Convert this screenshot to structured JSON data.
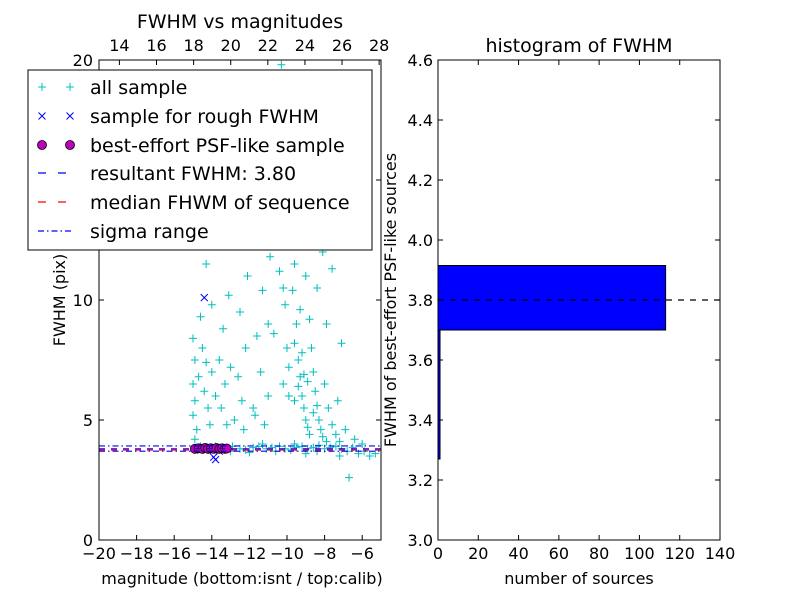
{
  "chart_data": [
    {
      "type": "scatter",
      "title": "FWHM vs magnitudes",
      "xlabel": "magnitude (bottom:isnt / top:calib)",
      "ylabel": "FWHM (pix)",
      "xlim": [
        -20,
        -5
      ],
      "ylim": [
        0,
        20
      ],
      "x_ticks": [
        -20,
        -18,
        -16,
        -14,
        -12,
        -10,
        -8,
        -6
      ],
      "x_tick_labels": [
        "−20",
        "−18",
        "−16",
        "−14",
        "−12",
        "−10",
        "−8",
        "−6"
      ],
      "y_ticks": [
        0,
        5,
        10,
        15,
        20
      ],
      "y_tick_labels": [
        "0",
        "5",
        "10",
        "15",
        "20"
      ],
      "top_axis": {
        "xlim": [
          12.9,
          28.1
        ],
        "ticks": [
          14,
          16,
          18,
          20,
          22,
          24,
          26,
          28
        ],
        "tick_labels": [
          "14",
          "16",
          "18",
          "20",
          "22",
          "24",
          "26",
          "28"
        ]
      },
      "legend_position": "upper-left",
      "legend": [
        {
          "label": "all sample",
          "marker": "plus",
          "color": "#00bfbf"
        },
        {
          "label": "sample for rough FWHM",
          "marker": "x",
          "color": "#0000ff"
        },
        {
          "label": "best-effort PSF-like sample",
          "marker": "circle",
          "color": "#bf00bf"
        },
        {
          "label": "resultant FWHM: 3.80",
          "marker": "dashed-line",
          "color": "#0000ff"
        },
        {
          "label": "median FHWM of sequence",
          "marker": "dashed-line",
          "color": "#ff0000"
        },
        {
          "label": "sigma range",
          "marker": "dashdot-line",
          "color": "#0000ff"
        }
      ],
      "series": [
        {
          "values": [
            [
              -14.8,
              3.85
            ],
            [
              -14.6,
              3.9
            ],
            [
              -14.3,
              3.8
            ],
            [
              -14.0,
              3.85
            ],
            [
              -13.8,
              3.9
            ],
            [
              -13.5,
              3.8
            ],
            [
              -13.2,
              3.85
            ],
            [
              -12.9,
              3.9
            ],
            [
              -12.5,
              3.8
            ],
            [
              -12.2,
              3.75
            ],
            [
              -11.8,
              3.85
            ],
            [
              -11.5,
              3.9
            ],
            [
              -11.1,
              3.8
            ],
            [
              -10.8,
              3.85
            ],
            [
              -10.4,
              3.9
            ],
            [
              -10.1,
              3.8
            ],
            [
              -9.8,
              3.75
            ],
            [
              -9.5,
              3.85
            ],
            [
              -9.2,
              3.9
            ],
            [
              -8.9,
              3.8
            ],
            [
              -8.6,
              3.85
            ],
            [
              -8.3,
              3.95
            ],
            [
              -8.0,
              3.8
            ],
            [
              -7.7,
              3.85
            ],
            [
              -7.4,
              3.9
            ],
            [
              -7.1,
              3.8
            ],
            [
              -6.8,
              3.7
            ],
            [
              -6.5,
              3.85
            ],
            [
              -6.2,
              3.6
            ],
            [
              -5.9,
              3.7
            ],
            [
              -5.6,
              3.5
            ],
            [
              -5.3,
              3.6
            ],
            [
              -6.7,
              2.6
            ],
            [
              -9.0,
              3.6
            ],
            [
              -8.4,
              3.7
            ],
            [
              -10.6,
              3.7
            ],
            [
              -12.0,
              3.65
            ],
            [
              -13.0,
              3.7
            ],
            [
              -11.3,
              4.0
            ],
            [
              -9.6,
              4.0
            ],
            [
              -7.9,
              4.1
            ],
            [
              -7.2,
              3.5
            ],
            [
              -15.0,
              8.4
            ],
            [
              -14.9,
              7.5
            ],
            [
              -15.0,
              6.5
            ],
            [
              -14.9,
              5.8
            ],
            [
              -15.0,
              5.2
            ],
            [
              -14.8,
              4.6
            ],
            [
              -14.9,
              4.2
            ],
            [
              -14.7,
              6.8
            ],
            [
              -14.6,
              9.3
            ],
            [
              -14.5,
              8.0
            ],
            [
              -14.3,
              7.4
            ],
            [
              -14.4,
              6.2
            ],
            [
              -14.2,
              5.5
            ],
            [
              -14.1,
              4.8
            ],
            [
              -14.0,
              7.0
            ],
            [
              -13.8,
              6.0
            ],
            [
              -13.6,
              7.5
            ],
            [
              -13.5,
              5.5
            ],
            [
              -13.3,
              6.5
            ],
            [
              -13.2,
              4.8
            ],
            [
              -13.0,
              7.2
            ],
            [
              -12.8,
              5.0
            ],
            [
              -12.6,
              6.8
            ],
            [
              -12.5,
              9.5
            ],
            [
              -12.3,
              4.6
            ],
            [
              -12.1,
              11.0
            ],
            [
              -11.8,
              5.5
            ],
            [
              -11.6,
              8.5
            ],
            [
              -11.4,
              7.0
            ],
            [
              -11.2,
              4.8
            ],
            [
              -11.0,
              9.0
            ],
            [
              -10.8,
              12.5
            ],
            [
              -10.6,
              16.0
            ],
            [
              -10.5,
              14.0
            ],
            [
              -10.3,
              19.8
            ],
            [
              -10.2,
              10.5
            ],
            [
              -10.0,
              8.0
            ],
            [
              -9.9,
              6.0
            ],
            [
              -9.8,
              18.5
            ],
            [
              -9.7,
              13.0
            ],
            [
              -9.6,
              11.5
            ],
            [
              -9.5,
              9.0
            ],
            [
              -9.4,
              7.5
            ],
            [
              -9.3,
              6.8
            ],
            [
              -9.2,
              6.0
            ],
            [
              -9.1,
              5.5
            ],
            [
              -9.0,
              5.0
            ],
            [
              -8.9,
              4.7
            ],
            [
              -8.8,
              4.4
            ],
            [
              -8.7,
              8.0
            ],
            [
              -8.6,
              7.0
            ],
            [
              -8.5,
              6.2
            ],
            [
              -8.4,
              5.6
            ],
            [
              -8.3,
              5.0
            ],
            [
              -8.2,
              4.6
            ],
            [
              -8.1,
              4.3
            ],
            [
              -8.0,
              6.5
            ],
            [
              -7.8,
              5.5
            ],
            [
              -7.6,
              4.8
            ],
            [
              -7.4,
              4.4
            ],
            [
              -7.2,
              4.1
            ],
            [
              -9.9,
              7.2
            ],
            [
              -9.6,
              8.2
            ],
            [
              -9.4,
              6.4
            ],
            [
              -9.2,
              7.8
            ],
            [
              -8.9,
              6.6
            ],
            [
              -10.1,
              9.8
            ],
            [
              -10.4,
              11.2
            ],
            [
              -9.7,
              10.4
            ],
            [
              -9.3,
              9.6
            ],
            [
              -8.8,
              9.2
            ],
            [
              -10.7,
              8.6
            ],
            [
              -11.5,
              13.5
            ],
            [
              -8.1,
              12.0
            ],
            [
              -7.9,
              9.0
            ],
            [
              -9.0,
              15.0
            ],
            [
              -9.5,
              17.0
            ],
            [
              -8.7,
              18.0
            ],
            [
              -13.9,
              12.5
            ],
            [
              -12.7,
              17.5
            ],
            [
              -14.3,
              11.5
            ],
            [
              -13.1,
              10.2
            ],
            [
              -11.9,
              12.8
            ],
            [
              -10.9,
              11.8
            ],
            [
              -9.6,
              5.8
            ],
            [
              -9.1,
              6.9
            ],
            [
              -8.6,
              5.3
            ],
            [
              -10.2,
              6.5
            ],
            [
              -11.0,
              6.0
            ],
            [
              -11.7,
              5.2
            ],
            [
              -12.4,
              5.8
            ],
            [
              -7.3,
              5.8
            ],
            [
              -6.9,
              4.6
            ],
            [
              -6.4,
              4.2
            ],
            [
              -6.0,
              4.0
            ],
            [
              -8.4,
              10.5
            ],
            [
              -9.0,
              11.0
            ],
            [
              -9.8,
              13.8
            ],
            [
              -10.1,
              15.2
            ],
            [
              -9.3,
              14.5
            ],
            [
              -8.6,
              13.2
            ],
            [
              -7.6,
              11.3
            ],
            [
              -7.1,
              8.2
            ],
            [
              -13.4,
              8.8
            ],
            [
              -12.2,
              8.0
            ],
            [
              -11.3,
              10.4
            ],
            [
              -14.0,
              9.8
            ],
            [
              -13.7,
              14.2
            ],
            [
              -12.9,
              13.6
            ],
            [
              -11.1,
              16.8
            ],
            [
              -10.0,
              19.0
            ],
            [
              -9.2,
              19.4
            ],
            [
              -8.3,
              16.4
            ],
            [
              -8.0,
              14.6
            ],
            [
              -7.4,
              13.1
            ]
          ],
          "marker": "plus",
          "color": "#00bfbf"
        },
        {
          "values": [
            [
              -14.8,
              3.8
            ],
            [
              -14.3,
              3.85
            ],
            [
              -13.9,
              3.75
            ],
            [
              -13.4,
              3.8
            ],
            [
              -14.4,
              10.1
            ],
            [
              -13.9,
              3.45
            ],
            [
              -13.8,
              3.35
            ],
            [
              -14.6,
              3.75
            ],
            [
              -13.6,
              3.7
            ]
          ],
          "marker": "x",
          "color": "#0000ff"
        },
        {
          "values": [
            [
              -14.9,
              3.8
            ],
            [
              -14.7,
              3.82
            ],
            [
              -14.5,
              3.8
            ],
            [
              -14.35,
              3.84
            ],
            [
              -14.2,
              3.8
            ],
            [
              -14.05,
              3.82
            ],
            [
              -13.9,
              3.8
            ],
            [
              -13.75,
              3.83
            ],
            [
              -13.6,
              3.8
            ],
            [
              -13.45,
              3.82
            ],
            [
              -13.3,
              3.8
            ],
            [
              -13.2,
              3.81
            ]
          ],
          "marker": "circle",
          "color": "#bf00bf"
        }
      ],
      "hlines": [
        {
          "y": 3.8,
          "style": "dashed",
          "color": "#0000ff"
        },
        {
          "y": 3.75,
          "style": "dashed",
          "color": "#ff0000"
        },
        {
          "y": 3.92,
          "style": "dashdot",
          "color": "#0000ff"
        },
        {
          "y": 3.7,
          "style": "dashdot",
          "color": "#0000ff"
        }
      ]
    },
    {
      "type": "bar",
      "orientation": "horizontal",
      "title": "histogram of FWHM",
      "xlabel": "number of sources",
      "ylabel": "FWHM of best-effort PSF-like sources",
      "xlim": [
        0,
        140
      ],
      "ylim": [
        3.0,
        4.6
      ],
      "x_ticks": [
        0,
        20,
        40,
        60,
        80,
        100,
        120,
        140
      ],
      "x_tick_labels": [
        "0",
        "20",
        "40",
        "60",
        "80",
        "100",
        "120",
        "140"
      ],
      "y_ticks": [
        3.0,
        3.2,
        3.4,
        3.6,
        3.8,
        4.0,
        4.2,
        4.4,
        4.6
      ],
      "y_tick_labels": [
        "3.0",
        "3.2",
        "3.4",
        "3.6",
        "3.8",
        "4.0",
        "4.2",
        "4.4",
        "4.6"
      ],
      "bars": [
        {
          "y_low": 3.27,
          "y_high": 3.7,
          "value": 1
        },
        {
          "y_low": 3.7,
          "y_high": 3.915,
          "value": 113
        }
      ],
      "bar_color": "#0000ff",
      "hlines": [
        {
          "y": 3.8,
          "style": "dashed",
          "color": "#000000"
        }
      ]
    }
  ]
}
